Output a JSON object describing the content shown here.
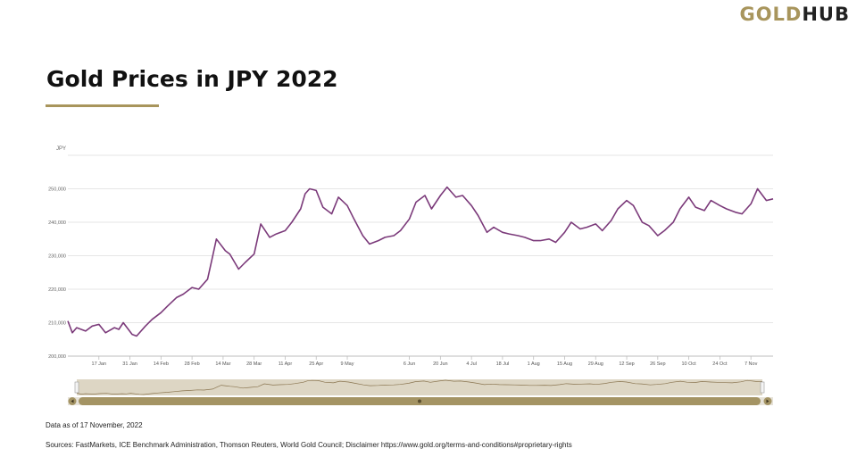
{
  "brand": {
    "gold": "GOLD",
    "hub": "HUB",
    "gold_color": "#a8955c"
  },
  "header": {
    "title": "Gold Prices in JPY 2022"
  },
  "footer": {
    "data_note": "Data as of 17 November, 2022",
    "sources": "Sources: FastMarkets, ICE Benchmark Administration, Thomson Reuters, World Gold Council; Disclaimer https://www.gold.org/terms-and-conditions#proprietary-rights"
  },
  "chart_data": {
    "type": "line",
    "title": "Gold Prices in JPY 2022",
    "ylabel": "JPY",
    "xlabel": "",
    "ylim": [
      200000,
      260000
    ],
    "yticks": [
      200000,
      210000,
      220000,
      230000,
      240000,
      250000
    ],
    "ytick_labels": [
      "200,000",
      "210,000",
      "220,000",
      "230,000",
      "240,000",
      "250,000"
    ],
    "xlim": [
      "2022-01-03",
      "2022-11-17"
    ],
    "xticks": [
      "2022-01-17",
      "2022-01-31",
      "2022-02-14",
      "2022-02-28",
      "2022-03-14",
      "2022-03-28",
      "2022-04-11",
      "2022-04-25",
      "2022-05-09",
      "2022-06-06",
      "2022-06-20",
      "2022-07-04",
      "2022-07-18",
      "2022-08-01",
      "2022-08-15",
      "2022-08-29",
      "2022-09-12",
      "2022-09-26",
      "2022-10-10",
      "2022-10-24",
      "2022-11-07"
    ],
    "xtick_labels": [
      "17 Jan",
      "31 Jan",
      "14 Feb",
      "28 Feb",
      "14 Mar",
      "28 Mar",
      "11 Apr",
      "25 Apr",
      "9 May",
      "6 Jun",
      "20 Jun",
      "4 Jul",
      "18 Jul",
      "1 Aug",
      "15 Aug",
      "29 Aug",
      "12 Sep",
      "26 Sep",
      "10 Oct",
      "24 Oct",
      "7 Nov"
    ],
    "grid": true,
    "line_color": "#7b3a7a",
    "navigator": true,
    "series": [
      {
        "x": [
          "2022-01-03",
          "2022-01-05",
          "2022-01-07",
          "2022-01-11",
          "2022-01-14",
          "2022-01-17",
          "2022-01-20",
          "2022-01-24",
          "2022-01-26",
          "2022-01-28",
          "2022-02-01",
          "2022-02-03",
          "2022-02-07",
          "2022-02-10",
          "2022-02-14",
          "2022-02-17",
          "2022-02-21",
          "2022-02-24",
          "2022-02-28",
          "2022-03-03",
          "2022-03-07",
          "2022-03-09",
          "2022-03-11",
          "2022-03-15",
          "2022-03-17",
          "2022-03-21",
          "2022-03-24",
          "2022-03-28",
          "2022-03-31",
          "2022-04-04",
          "2022-04-07",
          "2022-04-11",
          "2022-04-14",
          "2022-04-18",
          "2022-04-20",
          "2022-04-22",
          "2022-04-25",
          "2022-04-28",
          "2022-05-02",
          "2022-05-05",
          "2022-05-09",
          "2022-05-12",
          "2022-05-16",
          "2022-05-19",
          "2022-05-23",
          "2022-05-26",
          "2022-05-30",
          "2022-06-02",
          "2022-06-06",
          "2022-06-09",
          "2022-06-13",
          "2022-06-16",
          "2022-06-20",
          "2022-06-23",
          "2022-06-27",
          "2022-06-30",
          "2022-07-04",
          "2022-07-07",
          "2022-07-11",
          "2022-07-14",
          "2022-07-18",
          "2022-07-21",
          "2022-07-25",
          "2022-07-28",
          "2022-08-01",
          "2022-08-04",
          "2022-08-08",
          "2022-08-11",
          "2022-08-15",
          "2022-08-18",
          "2022-08-22",
          "2022-08-25",
          "2022-08-29",
          "2022-09-01",
          "2022-09-05",
          "2022-09-08",
          "2022-09-12",
          "2022-09-15",
          "2022-09-19",
          "2022-09-22",
          "2022-09-26",
          "2022-09-29",
          "2022-10-03",
          "2022-10-06",
          "2022-10-10",
          "2022-10-13",
          "2022-10-17",
          "2022-10-20",
          "2022-10-24",
          "2022-10-27",
          "2022-10-31",
          "2022-11-03",
          "2022-11-07",
          "2022-11-10",
          "2022-11-14",
          "2022-11-17"
        ],
        "y": [
          210500,
          207000,
          208500,
          207500,
          209000,
          209500,
          207000,
          208500,
          208000,
          210000,
          206500,
          206000,
          209000,
          211000,
          213000,
          215000,
          217500,
          218500,
          220500,
          220000,
          223000,
          229000,
          235000,
          231500,
          230500,
          226000,
          228000,
          230500,
          239500,
          235500,
          236500,
          237500,
          240000,
          244000,
          248500,
          250000,
          249500,
          244500,
          242500,
          247500,
          245000,
          241000,
          236000,
          233500,
          234500,
          235500,
          236000,
          237500,
          241000,
          246000,
          248000,
          244000,
          248000,
          250500,
          247500,
          248000,
          245000,
          242000,
          237000,
          238500,
          237000,
          236500,
          236000,
          235500,
          234500,
          234500,
          235000,
          234000,
          237000,
          240000,
          238000,
          238500,
          239500,
          237500,
          240500,
          244000,
          246500,
          245000,
          240000,
          239000,
          236000,
          237500,
          240000,
          244000,
          247500,
          244500,
          243500,
          246500,
          245000,
          244000,
          243000,
          242500,
          245500,
          250000,
          246500,
          247000
        ]
      }
    ]
  }
}
